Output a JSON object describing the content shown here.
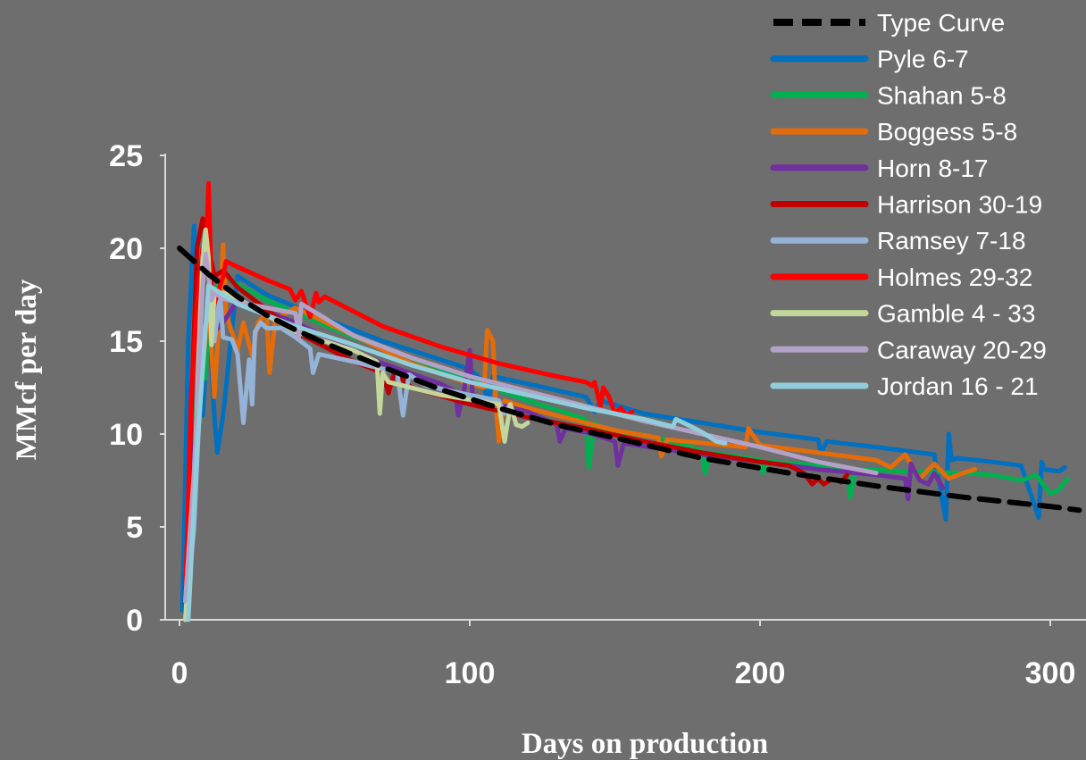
{
  "chart_data": {
    "type": "line",
    "title": "",
    "xlabel": "Days on production",
    "ylabel": "MMcf per day",
    "xlim": [
      0,
      310
    ],
    "ylim": [
      0,
      25
    ],
    "xticks": [
      0,
      100,
      200,
      300
    ],
    "yticks": [
      0,
      5,
      10,
      15,
      20,
      25
    ],
    "grid": false,
    "legend_position": "top-right",
    "series": [
      {
        "name": "Type Curve",
        "color": "#000000",
        "dashed": true,
        "x": [
          0,
          10,
          20,
          30,
          40,
          50,
          70,
          90,
          110,
          130,
          150,
          180,
          210,
          240,
          270,
          300,
          310
        ],
        "y": [
          20,
          18.6,
          17.4,
          16.4,
          15.6,
          14.9,
          13.6,
          12.4,
          11.4,
          10.5,
          9.8,
          8.7,
          7.9,
          7.2,
          6.6,
          6.1,
          5.9
        ]
      },
      {
        "name": "Pyle 6-7",
        "color": "#0070c0",
        "x": [
          1,
          3,
          5,
          6,
          8,
          10,
          12,
          13,
          15,
          20,
          30,
          50,
          70,
          90,
          100,
          105,
          106,
          108,
          120,
          140,
          143,
          145,
          160,
          180,
          200,
          220,
          221,
          223,
          240,
          260,
          264,
          265,
          266,
          268,
          280,
          290,
          296,
          297,
          298,
          303,
          305
        ],
        "y": [
          0.5,
          15,
          21.2,
          18,
          11,
          16.5,
          11,
          9,
          11,
          18.5,
          17.5,
          16.2,
          15,
          14,
          13.5,
          12.8,
          11.5,
          13.1,
          12.7,
          12,
          11.2,
          11.8,
          11.1,
          10.6,
          10.1,
          9.7,
          9,
          9.6,
          9.3,
          8.9,
          5.4,
          10,
          8.6,
          8.7,
          8.5,
          8.3,
          5.5,
          8.5,
          8.1,
          8.0,
          8.2
        ]
      },
      {
        "name": "Shahan 5-8",
        "color": "#00b050",
        "x": [
          2,
          4,
          6,
          8,
          9,
          10,
          15,
          30,
          60,
          90,
          120,
          140,
          141,
          143,
          145,
          165,
          180,
          181,
          183,
          200,
          201,
          203,
          230,
          231,
          233,
          250,
          270,
          280,
          290,
          295,
          300,
          303,
          306
        ],
        "y": [
          0,
          6,
          12,
          14,
          13,
          17,
          18.5,
          17.2,
          15.2,
          13.5,
          11.8,
          10.8,
          8.2,
          10.6,
          10.3,
          9.8,
          9.1,
          7.9,
          9.0,
          8.6,
          7.9,
          8.5,
          8.2,
          6.6,
          8.1,
          8.0,
          7.9,
          7.8,
          7.5,
          7.8,
          6.8,
          7.0,
          7.6
        ]
      },
      {
        "name": "Boggess 5-8",
        "color": "#e46c0a",
        "x": [
          3,
          6,
          10,
          12,
          14,
          15,
          16,
          20,
          22,
          25,
          27,
          30,
          31,
          33,
          40,
          60,
          80,
          100,
          105,
          106,
          108,
          109,
          110,
          112,
          120,
          140,
          150,
          165,
          166,
          168,
          195,
          196,
          200,
          230,
          240,
          245,
          250,
          255,
          260,
          265,
          270,
          274
        ],
        "y": [
          2,
          10,
          17,
          12,
          17,
          20.2,
          16.5,
          14.5,
          16,
          14.2,
          16,
          16.5,
          13.3,
          16.2,
          16.8,
          15.3,
          13.8,
          12.7,
          12.5,
          15.6,
          15,
          11.5,
          9.6,
          11.8,
          11.4,
          10.6,
          10.2,
          9.8,
          8.8,
          9.7,
          9.3,
          10.3,
          9.4,
          8.8,
          8.6,
          8.2,
          8.9,
          7.6,
          8.4,
          7.6,
          7.9,
          8.1
        ]
      },
      {
        "name": "Horn 8-17",
        "color": "#7030a0",
        "x": [
          3,
          5,
          8,
          10,
          12,
          15,
          20,
          40,
          60,
          70,
          90,
          95,
          96,
          98,
          100,
          101,
          102,
          120,
          130,
          131,
          133,
          140,
          150,
          151,
          153,
          180,
          200,
          220,
          240,
          250,
          251,
          252,
          255,
          258,
          260,
          263
        ],
        "y": [
          1,
          9,
          15.5,
          16.8,
          15.5,
          16,
          17.2,
          16,
          14.5,
          13.8,
          12.7,
          12.3,
          11,
          12.3,
          14.5,
          12,
          11.9,
          11.2,
          10.5,
          9.6,
          10.3,
          10.1,
          9.6,
          8.3,
          9.5,
          8.9,
          8.5,
          8.1,
          7.8,
          7.6,
          6.5,
          8.4,
          7.5,
          7.3,
          7.9,
          7.1
        ]
      },
      {
        "name": "Harrison 30-19",
        "color": "#c00000",
        "x": [
          2,
          4,
          6,
          8,
          12,
          15,
          20,
          40,
          60,
          70,
          72,
          74,
          80,
          100,
          120,
          140,
          160,
          180,
          200,
          210,
          215,
          218,
          220,
          222,
          225,
          228,
          230
        ],
        "y": [
          1,
          11,
          20,
          21.6,
          18.5,
          18.8,
          17.9,
          15.5,
          13.9,
          13.3,
          12.2,
          13.3,
          12.5,
          11.6,
          10.9,
          10.3,
          9.6,
          9.0,
          8.5,
          8.3,
          7.9,
          7.3,
          7.6,
          7.3,
          7.6,
          7.4,
          7.8
        ]
      },
      {
        "name": "Ramsey 7-18",
        "color": "#95b3d7",
        "x": [
          2,
          5,
          8,
          10,
          12,
          14,
          15,
          18,
          20,
          22,
          24,
          25,
          26,
          28,
          30,
          35,
          40,
          45,
          46,
          48,
          60,
          75,
          77,
          79,
          85,
          100,
          110,
          112,
          114
        ],
        "y": [
          0,
          5,
          15,
          16.8,
          15,
          17.5,
          15.2,
          15.1,
          14.3,
          10.6,
          14,
          11.6,
          15.5,
          16,
          15.7,
          15.7,
          15.2,
          14.6,
          13.3,
          14.3,
          13.9,
          13.3,
          11,
          13.2,
          12.6,
          12.1,
          11.8,
          11.1,
          11.6
        ]
      },
      {
        "name": "Holmes 29-32",
        "color": "#ff0000",
        "x": [
          2,
          4,
          6,
          8,
          9,
          10,
          11,
          12,
          15,
          16,
          20,
          30,
          38,
          40,
          42,
          45,
          47,
          48,
          50,
          70,
          90,
          110,
          130,
          140,
          142,
          143,
          145,
          146,
          148,
          150,
          152,
          154,
          156
        ],
        "y": [
          1,
          12,
          17,
          20,
          19.3,
          23.5,
          18,
          17,
          18.5,
          19.3,
          19,
          18.3,
          17.8,
          17.2,
          17.7,
          16.3,
          17.6,
          17.1,
          17.4,
          15.8,
          14.7,
          13.8,
          13.1,
          12.8,
          12.6,
          12.8,
          11.5,
          12.5,
          12,
          11.1,
          11.4,
          11,
          11.2
        ]
      },
      {
        "name": "Gamble 4 - 33",
        "color": "#c3d69b",
        "x": [
          2,
          5,
          7,
          8,
          9,
          10,
          11,
          12,
          15,
          20,
          40,
          60,
          68,
          69,
          70,
          72,
          90,
          110,
          112,
          113,
          114,
          116,
          118,
          120
        ],
        "y": [
          0,
          7,
          16,
          19.5,
          21,
          19.5,
          14.8,
          17.5,
          17.6,
          17.3,
          15.5,
          14.5,
          13.9,
          11.1,
          13.3,
          12.8,
          12.1,
          11.6,
          9.6,
          10.6,
          11.6,
          10.5,
          10.4,
          10.6
        ]
      },
      {
        "name": "Caraway 20-29",
        "color": "#b3a2c7",
        "x": [
          2,
          5,
          8,
          9,
          10,
          11,
          12,
          15,
          20,
          40,
          41,
          42,
          60,
          80,
          100,
          120,
          140,
          160,
          180,
          200,
          220,
          240
        ],
        "y": [
          1,
          8,
          18,
          19.7,
          18.5,
          17.2,
          17.6,
          17.3,
          17.1,
          16.5,
          15.2,
          17,
          15.3,
          14.1,
          13.1,
          12.3,
          11.5,
          10.7,
          10.0,
          9.3,
          8.5,
          7.9
        ]
      },
      {
        "name": "Jordan 16 - 21",
        "color": "#92cddc",
        "x": [
          3,
          6,
          10,
          15,
          20,
          40,
          60,
          80,
          100,
          120,
          140,
          160,
          170,
          171,
          175,
          180,
          185,
          188
        ],
        "y": [
          0,
          9,
          18,
          17.5,
          17,
          15.8,
          14.8,
          13.7,
          12.8,
          12.1,
          11.4,
          10.8,
          10.4,
          10.8,
          10.5,
          10.1,
          9.6,
          9.5
        ]
      }
    ]
  }
}
